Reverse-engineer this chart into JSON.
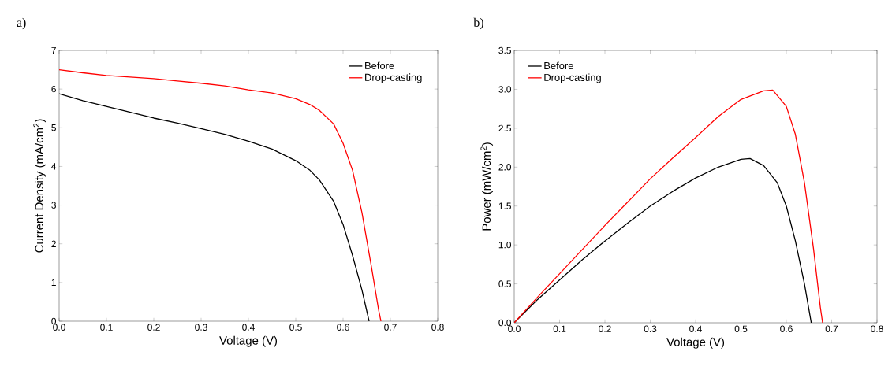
{
  "chart_data": [
    {
      "type": "line",
      "title": "a)",
      "xlabel": "Voltage (V)",
      "ylabel": "Current Density (mA/cm$^{2}$)",
      "xlim": [
        0,
        0.8
      ],
      "ylim": [
        0,
        7
      ],
      "xticks": [
        {
          "value": 0,
          "label": "0.0"
        },
        {
          "value": 0.1,
          "label": "0.1"
        },
        {
          "value": 0.2,
          "label": "0.2"
        },
        {
          "value": 0.3,
          "label": "0.3"
        },
        {
          "value": 0.4,
          "label": "0.4"
        },
        {
          "value": 0.5,
          "label": "0.5"
        },
        {
          "value": 0.6,
          "label": "0.6"
        },
        {
          "value": 0.7,
          "label": "0.7"
        },
        {
          "value": 0.8,
          "label": "0.8"
        }
      ],
      "yticks": [
        0,
        1,
        2,
        3,
        4,
        5,
        6,
        7
      ],
      "legend": "top right",
      "grid": false,
      "marker": "none",
      "line_style": "solid",
      "series": [
        {
          "name": "Before",
          "color": "#000000",
          "x": [
            0,
            0.05,
            0.1,
            0.15,
            0.2,
            0.25,
            0.3,
            0.35,
            0.4,
            0.45,
            0.5,
            0.53,
            0.55,
            0.58,
            0.6,
            0.62,
            0.64,
            0.655
          ],
          "values": [
            5.88,
            5.7,
            5.55,
            5.4,
            5.25,
            5.12,
            4.98,
            4.83,
            4.65,
            4.45,
            4.15,
            3.9,
            3.65,
            3.1,
            2.5,
            1.7,
            0.8,
            0
          ]
        },
        {
          "name": "Drop-casting",
          "color": "#ff0000",
          "x": [
            0,
            0.05,
            0.1,
            0.15,
            0.2,
            0.25,
            0.3,
            0.35,
            0.4,
            0.45,
            0.5,
            0.53,
            0.55,
            0.58,
            0.6,
            0.62,
            0.64,
            0.66,
            0.675,
            0.68
          ],
          "values": [
            6.5,
            6.42,
            6.35,
            6.31,
            6.27,
            6.21,
            6.15,
            6.08,
            5.98,
            5.9,
            5.75,
            5.6,
            5.45,
            5.1,
            4.6,
            3.9,
            2.8,
            1.4,
            0.3,
            0
          ]
        }
      ]
    },
    {
      "type": "line",
      "title": "b)",
      "xlabel": "Voltage (V)",
      "ylabel": "Power (mW/cm$^{2}$)",
      "xlim": [
        0,
        0.8
      ],
      "ylim": [
        0,
        3.5
      ],
      "xticks": [
        {
          "value": 0,
          "label": "0.0"
        },
        {
          "value": 0.1,
          "label": "0.1"
        },
        {
          "value": 0.2,
          "label": "0.2"
        },
        {
          "value": 0.3,
          "label": "0.3"
        },
        {
          "value": 0.4,
          "label": "0.4"
        },
        {
          "value": 0.5,
          "label": "0.5"
        },
        {
          "value": 0.6,
          "label": "0.6"
        },
        {
          "value": 0.7,
          "label": "0.7"
        },
        {
          "value": 0.8,
          "label": "0.8"
        }
      ],
      "yticks": [
        {
          "value": 0,
          "label": "0.0"
        },
        {
          "value": 0.5,
          "label": "0.5"
        },
        {
          "value": 1,
          "label": "1.0"
        },
        {
          "value": 1.5,
          "label": "1.5"
        },
        {
          "value": 2,
          "label": "2.0"
        },
        {
          "value": 2.5,
          "label": "2.5"
        },
        {
          "value": 3,
          "label": "3.0"
        },
        {
          "value": 3.5,
          "label": "3.5"
        }
      ],
      "legend": "top left",
      "grid": false,
      "marker": "none",
      "line_style": "solid",
      "series": [
        {
          "name": "Before",
          "color": "#000000",
          "x": [
            0,
            0.05,
            0.1,
            0.15,
            0.2,
            0.25,
            0.3,
            0.35,
            0.4,
            0.45,
            0.5,
            0.52,
            0.55,
            0.58,
            0.6,
            0.62,
            0.64,
            0.655
          ],
          "values": [
            0,
            0.29,
            0.55,
            0.81,
            1.05,
            1.28,
            1.5,
            1.69,
            1.86,
            2.0,
            2.1,
            2.11,
            2.02,
            1.8,
            1.5,
            1.05,
            0.5,
            0
          ]
        },
        {
          "name": "Drop-casting",
          "color": "#ff0000",
          "x": [
            0,
            0.05,
            0.1,
            0.15,
            0.2,
            0.25,
            0.3,
            0.35,
            0.4,
            0.45,
            0.5,
            0.55,
            0.57,
            0.6,
            0.62,
            0.64,
            0.66,
            0.675,
            0.68
          ],
          "values": [
            0,
            0.32,
            0.63,
            0.94,
            1.25,
            1.55,
            1.85,
            2.12,
            2.38,
            2.65,
            2.87,
            2.98,
            2.99,
            2.78,
            2.42,
            1.8,
            0.95,
            0.2,
            0
          ]
        }
      ]
    }
  ]
}
